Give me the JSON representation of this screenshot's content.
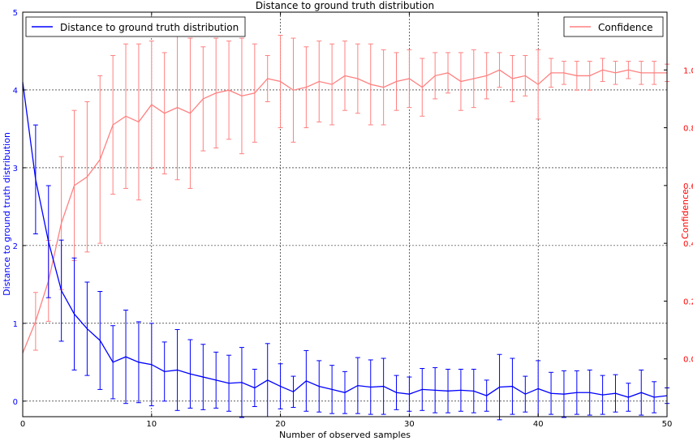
{
  "chart_data": {
    "type": "line",
    "title": "Distance to ground truth distribution",
    "xlabel": "Number of observed samples",
    "ylabel_left": "Distance to ground truth distribution",
    "ylabel_right": "Confidence",
    "xlim": [
      0,
      50
    ],
    "ylim_left": [
      -0.2,
      5
    ],
    "ylim_right": [
      -0.2,
      1.2
    ],
    "x_ticks": [
      "0",
      "10",
      "20",
      "30",
      "40",
      "50"
    ],
    "y_left_ticks": [
      "0",
      "1",
      "2",
      "3",
      "4",
      "5"
    ],
    "y_right_ticks": [
      "0.0",
      "0.2",
      "0.4",
      "0.6",
      "0.8",
      "1.0"
    ],
    "grid": true,
    "colors": {
      "distance": "#0000ff",
      "confidence": "#ff8080",
      "right_axis": "#ff0000"
    },
    "legend": [
      {
        "label": "Distance to ground truth distribution",
        "placement": "top-left"
      },
      {
        "label": "Confidence",
        "placement": "top-right"
      }
    ],
    "series": [
      {
        "name": "Distance to ground truth distribution",
        "axis": "left",
        "x": [
          0,
          1,
          2,
          3,
          4,
          5,
          6,
          7,
          8,
          9,
          10,
          11,
          12,
          13,
          14,
          15,
          16,
          17,
          18,
          19,
          20,
          21,
          22,
          23,
          24,
          25,
          26,
          27,
          28,
          29,
          30,
          31,
          32,
          33,
          34,
          35,
          36,
          37,
          38,
          39,
          40,
          41,
          42,
          43,
          44,
          45,
          46,
          47,
          48,
          49,
          50
        ],
        "y": [
          4.1,
          2.85,
          2.05,
          1.42,
          1.12,
          0.93,
          0.78,
          0.5,
          0.57,
          0.5,
          0.47,
          0.38,
          0.4,
          0.35,
          0.31,
          0.27,
          0.23,
          0.24,
          0.17,
          0.27,
          0.19,
          0.12,
          0.26,
          0.19,
          0.15,
          0.11,
          0.2,
          0.18,
          0.19,
          0.11,
          0.09,
          0.15,
          0.14,
          0.13,
          0.14,
          0.13,
          0.07,
          0.18,
          0.19,
          0.09,
          0.16,
          0.1,
          0.09,
          0.11,
          0.11,
          0.08,
          0.1,
          0.05,
          0.11,
          0.05,
          0.07
        ],
        "yerr": [
          0,
          0.7,
          0.72,
          0.65,
          0.72,
          0.6,
          0.63,
          0.47,
          0.6,
          0.52,
          0.53,
          0.38,
          0.52,
          0.44,
          0.42,
          0.36,
          0.36,
          0.45,
          0.24,
          0.47,
          0.29,
          0.2,
          0.39,
          0.33,
          0.31,
          0.27,
          0.36,
          0.35,
          0.36,
          0.22,
          0.22,
          0.27,
          0.29,
          0.28,
          0.27,
          0.28,
          0.2,
          0.42,
          0.36,
          0.23,
          0.36,
          0.27,
          0.3,
          0.28,
          0.29,
          0.25,
          0.24,
          0.18,
          0.29,
          0.2,
          0.1
        ]
      },
      {
        "name": "Confidence",
        "axis": "right",
        "x": [
          0,
          1,
          2,
          3,
          4,
          5,
          6,
          7,
          8,
          9,
          10,
          11,
          12,
          13,
          14,
          15,
          16,
          17,
          18,
          19,
          20,
          21,
          22,
          23,
          24,
          25,
          26,
          27,
          28,
          29,
          30,
          31,
          32,
          33,
          34,
          35,
          36,
          37,
          38,
          39,
          40,
          41,
          42,
          43,
          44,
          45,
          46,
          47,
          48,
          49,
          50
        ],
        "y": [
          0.02,
          0.13,
          0.27,
          0.47,
          0.6,
          0.63,
          0.69,
          0.81,
          0.84,
          0.82,
          0.88,
          0.85,
          0.87,
          0.85,
          0.9,
          0.92,
          0.93,
          0.91,
          0.92,
          0.97,
          0.96,
          0.93,
          0.94,
          0.96,
          0.95,
          0.98,
          0.97,
          0.95,
          0.94,
          0.96,
          0.97,
          0.94,
          0.98,
          0.99,
          0.96,
          0.97,
          0.98,
          1.0,
          0.97,
          0.98,
          0.95,
          0.99,
          0.99,
          0.98,
          0.98,
          1.0,
          0.99,
          1.0,
          0.99,
          0.99,
          0.99
        ],
        "yerr": [
          0,
          0.1,
          0.14,
          0.23,
          0.26,
          0.26,
          0.29,
          0.24,
          0.25,
          0.27,
          0.22,
          0.21,
          0.25,
          0.26,
          0.18,
          0.19,
          0.17,
          0.2,
          0.17,
          0.08,
          0.16,
          0.18,
          0.14,
          0.14,
          0.14,
          0.12,
          0.12,
          0.14,
          0.13,
          0.1,
          0.1,
          0.1,
          0.08,
          0.07,
          0.1,
          0.1,
          0.08,
          0.06,
          0.08,
          0.07,
          0.12,
          0.05,
          0.04,
          0.05,
          0.05,
          0.04,
          0.04,
          0.03,
          0.04,
          0.04,
          0.03
        ]
      }
    ]
  }
}
